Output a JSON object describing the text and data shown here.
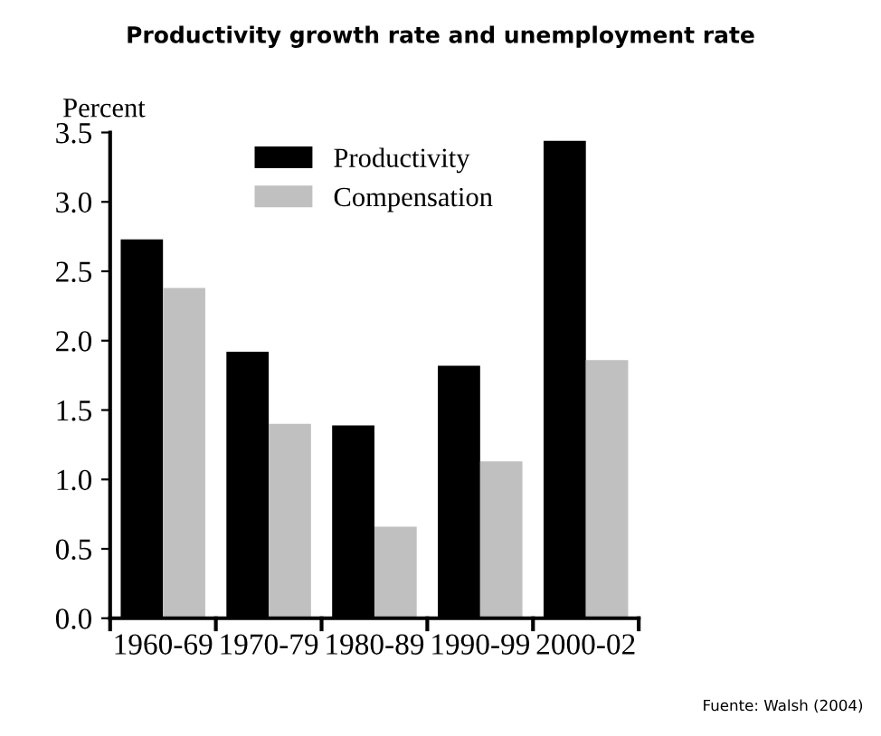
{
  "chart_data": {
    "type": "bar",
    "title": "Productivity growth rate and unemployment rate",
    "ylabel": "Percent",
    "categories": [
      "1960-69",
      "1970-79",
      "1980-89",
      "1990-99",
      "2000-02"
    ],
    "series": [
      {
        "name": "Productivity",
        "color": "#000000",
        "values": [
          2.73,
          1.92,
          1.39,
          1.82,
          3.44
        ]
      },
      {
        "name": "Compensation",
        "color": "#c0c0c0",
        "values": [
          2.38,
          1.4,
          0.66,
          1.13,
          1.86
        ]
      }
    ],
    "ylim": [
      0,
      3.5
    ],
    "yticks": [
      {
        "value": 0,
        "label": "0.0"
      },
      0.5,
      {
        "value": 1,
        "label": "1.0"
      },
      1.5,
      {
        "value": 2,
        "label": "2.0"
      },
      2.5,
      {
        "value": 3,
        "label": "3.0"
      },
      3.5
    ],
    "legend": "top",
    "grid": false,
    "annotations": [
      "Fuente: Walsh (2004)"
    ]
  }
}
